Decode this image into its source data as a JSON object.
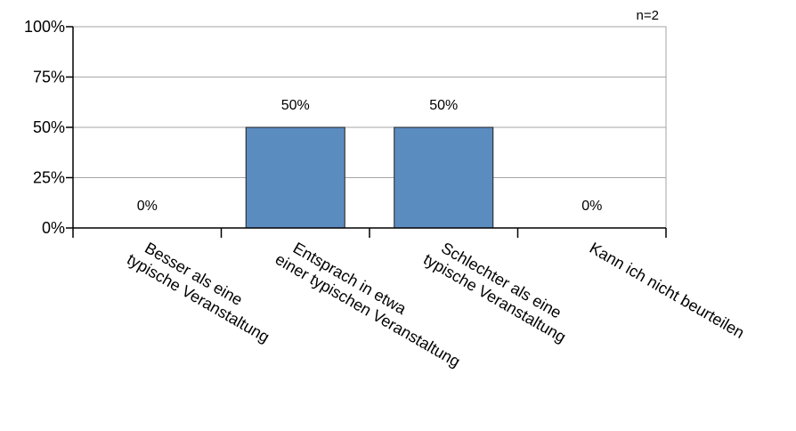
{
  "chart_data": {
    "type": "bar",
    "annotation": "n=2",
    "categories": [
      [
        "Besser als eine",
        "typische Veranstaltung"
      ],
      [
        "Entsprach in etwa",
        "einer typischen Veranstaltung"
      ],
      [
        "Schlechter als eine",
        "typische Veranstaltung"
      ],
      [
        "Kann ich nicht beurteilen"
      ]
    ],
    "values": [
      0,
      50,
      50,
      0
    ],
    "value_labels": [
      "0%",
      "50%",
      "50%",
      "0%"
    ],
    "y_ticks": [
      {
        "value": 0,
        "label": "0%"
      },
      {
        "value": 25,
        "label": "25%"
      },
      {
        "value": 50,
        "label": "50%"
      },
      {
        "value": 75,
        "label": "75%"
      },
      {
        "value": 100,
        "label": "100%"
      }
    ],
    "ylim": [
      0,
      100
    ],
    "title": "",
    "xlabel": "",
    "ylabel": "",
    "grid": true,
    "bar_color": "#5b8cc0",
    "grid_color": "#a6a6a6"
  }
}
